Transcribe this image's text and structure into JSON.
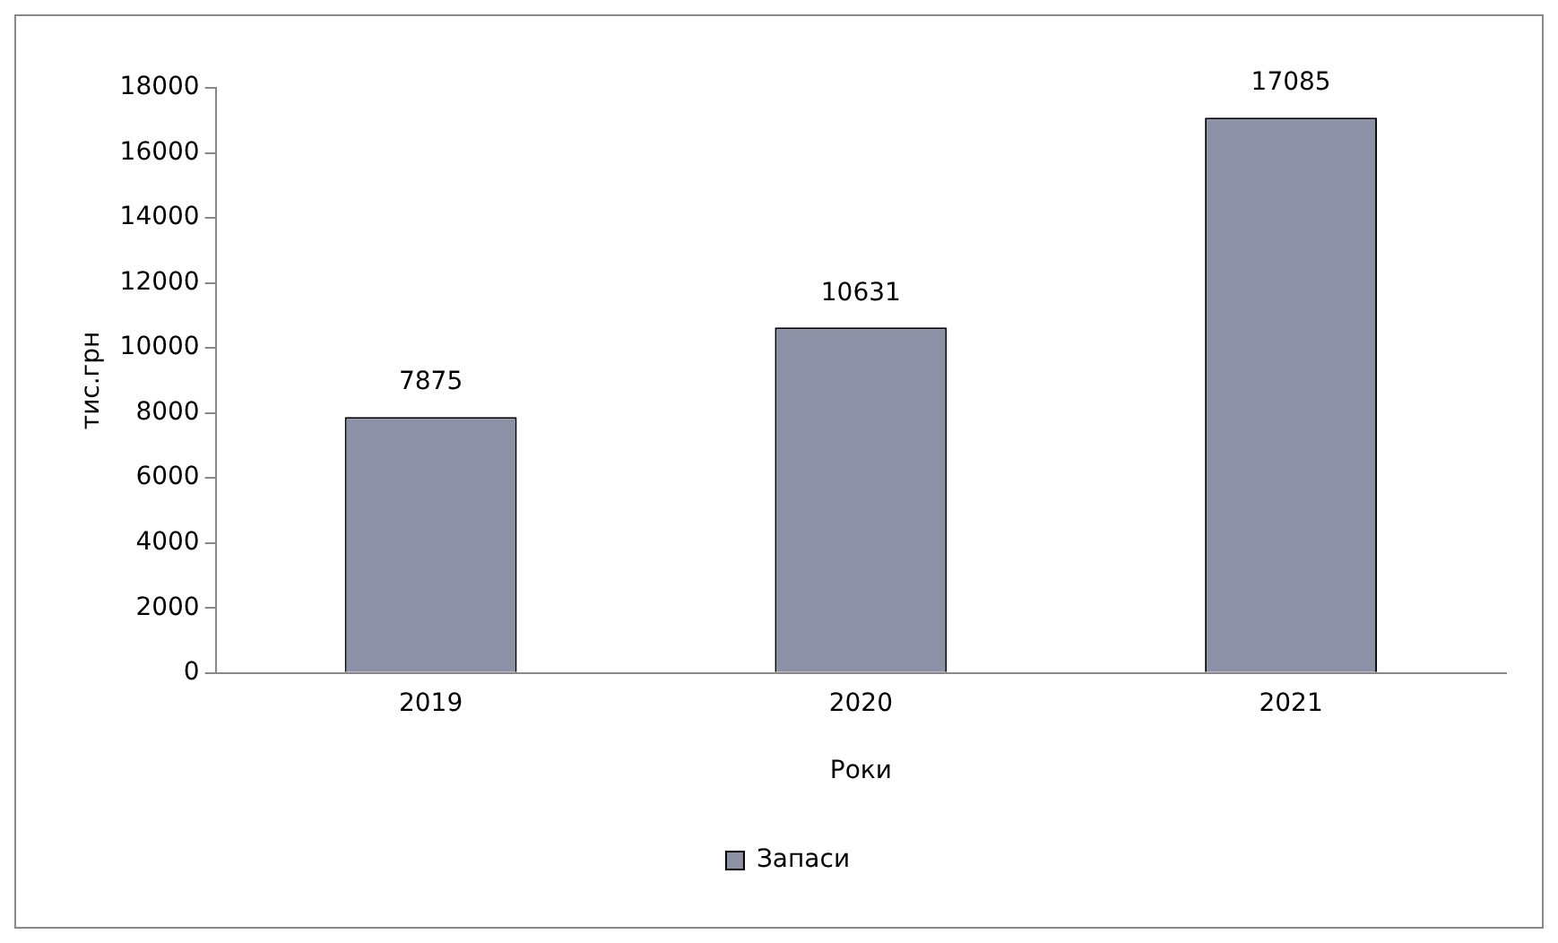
{
  "chart_data": {
    "type": "bar",
    "xlabel": "Роки",
    "ylabel": "тис.грн",
    "categories": [
      "2019",
      "2020",
      "2021"
    ],
    "series": [
      {
        "name": "Запаси",
        "color": "#8c91a6",
        "values": [
          7875,
          10631,
          17085
        ]
      }
    ],
    "ylim": [
      0,
      18000
    ],
    "yticks": [
      0,
      2000,
      4000,
      6000,
      8000,
      10000,
      12000,
      14000,
      16000,
      18000
    ],
    "grid": false,
    "legend": "bottom",
    "data_labels": true
  }
}
